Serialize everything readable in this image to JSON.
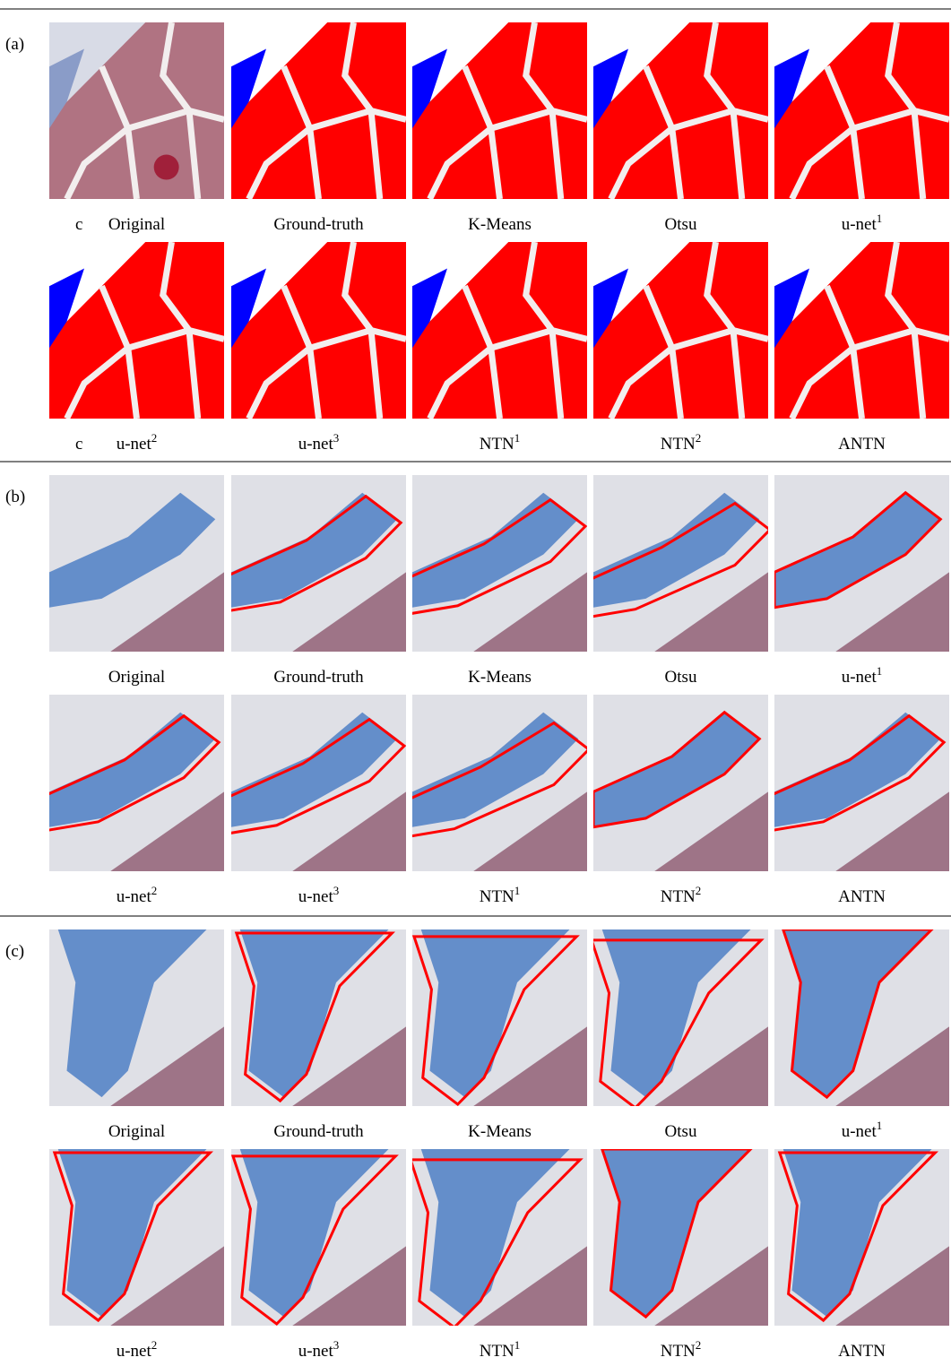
{
  "panels": [
    {
      "label": "(a)",
      "rows": [
        {
          "prefix": "c",
          "captions": [
            {
              "text": "Original"
            },
            {
              "text": "Ground-truth"
            },
            {
              "text": "K-Means"
            },
            {
              "text": "Otsu"
            },
            {
              "text": "u-net",
              "sup": "1"
            }
          ]
        },
        {
          "prefix": "c",
          "captions": [
            {
              "text": "u-net",
              "sup": "2"
            },
            {
              "text": "u-net",
              "sup": "3"
            },
            {
              "text": "NTN",
              "sup": "1"
            },
            {
              "text": "NTN",
              "sup": "2"
            },
            {
              "text": "ANTN"
            }
          ]
        }
      ]
    },
    {
      "label": "(b)",
      "rows": [
        {
          "captions": [
            {
              "text": "Original"
            },
            {
              "text": "Ground-truth"
            },
            {
              "text": "K-Means"
            },
            {
              "text": "Otsu"
            },
            {
              "text": "u-net",
              "sup": "1"
            }
          ]
        },
        {
          "captions": [
            {
              "text": "u-net",
              "sup": "2"
            },
            {
              "text": "u-net",
              "sup": "3"
            },
            {
              "text": "NTN",
              "sup": "1"
            },
            {
              "text": "NTN",
              "sup": "2"
            },
            {
              "text": "ANTN"
            }
          ]
        }
      ]
    },
    {
      "label": "(c)",
      "rows": [
        {
          "captions": [
            {
              "text": "Original"
            },
            {
              "text": "Ground-truth"
            },
            {
              "text": "K-Means"
            },
            {
              "text": "Otsu"
            },
            {
              "text": "u-net",
              "sup": "1"
            }
          ]
        },
        {
          "captions": [
            {
              "text": "u-net",
              "sup": "2"
            },
            {
              "text": "u-net",
              "sup": "3"
            },
            {
              "text": "NTN",
              "sup": "1"
            },
            {
              "text": "NTN",
              "sup": "2"
            },
            {
              "text": "ANTN"
            }
          ]
        }
      ]
    }
  ]
}
